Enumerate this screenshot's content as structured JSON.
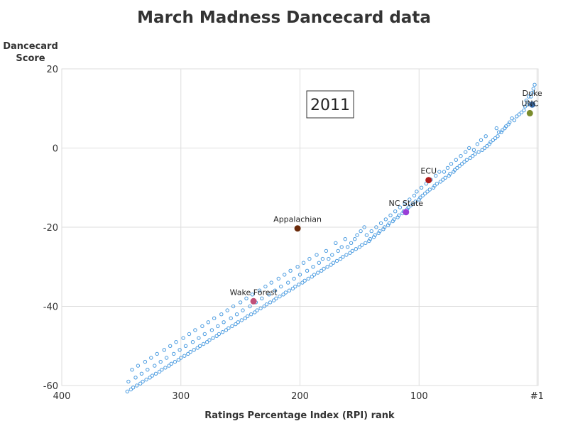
{
  "chart_data": {
    "type": "scatter",
    "title": "March Madness Dancecard data",
    "xlabel": "Ratings Percentage Index (RPI) rank",
    "ylabel": [
      "Dancecard",
      "Score"
    ],
    "xlim": [
      400,
      0
    ],
    "ylim": [
      -60,
      20
    ],
    "x_ticks": [
      400,
      300,
      200,
      100,
      1
    ],
    "x_tick_labels": [
      "400",
      "300",
      "200",
      "100",
      "#1"
    ],
    "y_ticks": [
      20,
      0,
      -20,
      -40,
      -60
    ],
    "y_tick_labels": [
      "20",
      "0",
      "-20",
      "-40",
      "-60"
    ],
    "grid": true,
    "annotation_box": "2011",
    "point_color": "#4a9be0",
    "highlighted": [
      {
        "name": "Duke",
        "x": 5,
        "y": 11,
        "color": "#3a6fb0"
      },
      {
        "name": "UNC",
        "x": 7,
        "y": 8.8,
        "color": "#7a8c2c"
      },
      {
        "name": "ECU",
        "x": 92,
        "y": -8.1,
        "color": "#b01c1c"
      },
      {
        "name": "NC State",
        "x": 111,
        "y": -16.2,
        "color": "#9a3ed6"
      },
      {
        "name": "Appalachian",
        "x": 202,
        "y": -20.3,
        "color": "#6a2a0a"
      },
      {
        "name": "Wake Forest",
        "x": 239,
        "y": -38.7,
        "color": "#c0507a"
      }
    ],
    "series": [
      {
        "name": "",
        "points": [
          [
            3,
            16
          ],
          [
            4,
            15
          ],
          [
            5,
            14
          ],
          [
            6,
            13
          ],
          [
            8,
            13
          ],
          [
            10,
            12
          ],
          [
            9,
            11
          ],
          [
            11,
            10.5
          ],
          [
            12,
            9.5
          ],
          [
            14,
            9
          ],
          [
            16,
            8.5
          ],
          [
            18,
            8
          ],
          [
            20,
            7
          ],
          [
            22,
            7.5
          ],
          [
            24,
            6.5
          ],
          [
            25,
            6
          ],
          [
            27,
            5.5
          ],
          [
            28,
            5
          ],
          [
            30,
            4.5
          ],
          [
            31,
            4
          ],
          [
            33,
            4
          ],
          [
            34,
            3
          ],
          [
            35,
            5
          ],
          [
            36,
            2.5
          ],
          [
            38,
            2
          ],
          [
            40,
            1.5
          ],
          [
            41,
            1
          ],
          [
            43,
            0.5
          ],
          [
            44,
            3
          ],
          [
            45,
            0
          ],
          [
            47,
            -0.5
          ],
          [
            48,
            2
          ],
          [
            50,
            -1
          ],
          [
            51,
            1
          ],
          [
            53,
            -1.5
          ],
          [
            54,
            -0.5
          ],
          [
            55,
            -2
          ],
          [
            57,
            -2.5
          ],
          [
            58,
            0
          ],
          [
            60,
            -3
          ],
          [
            61,
            -1
          ],
          [
            62,
            -3.5
          ],
          [
            64,
            -4
          ],
          [
            65,
            -2
          ],
          [
            66,
            -4.5
          ],
          [
            68,
            -5
          ],
          [
            69,
            -3
          ],
          [
            70,
            -5.5
          ],
          [
            71,
            -6
          ],
          [
            73,
            -4
          ],
          [
            74,
            -6.5
          ],
          [
            75,
            -7
          ],
          [
            76,
            -5
          ],
          [
            78,
            -7.5
          ],
          [
            79,
            -6
          ],
          [
            80,
            -8
          ],
          [
            82,
            -8.5
          ],
          [
            83,
            -6
          ],
          [
            85,
            -9
          ],
          [
            86,
            -7
          ],
          [
            87,
            -9.5
          ],
          [
            88,
            -10
          ],
          [
            90,
            -8
          ],
          [
            91,
            -10.5
          ],
          [
            93,
            -11
          ],
          [
            94,
            -9
          ],
          [
            95,
            -11.5
          ],
          [
            97,
            -12
          ],
          [
            98,
            -10
          ],
          [
            99,
            -12.5
          ],
          [
            100,
            -13
          ],
          [
            102,
            -11
          ],
          [
            103,
            -13.5
          ],
          [
            104,
            -12
          ],
          [
            105,
            -14
          ],
          [
            107,
            -14.5
          ],
          [
            108,
            -13
          ],
          [
            109,
            -15
          ],
          [
            110,
            -15.5
          ],
          [
            112,
            -14
          ],
          [
            113,
            -16
          ],
          [
            114,
            -16.5
          ],
          [
            116,
            -15
          ],
          [
            117,
            -17
          ],
          [
            118,
            -17.5
          ],
          [
            120,
            -16
          ],
          [
            121,
            -18
          ],
          [
            122,
            -18.5
          ],
          [
            124,
            -17
          ],
          [
            125,
            -19
          ],
          [
            126,
            -19.5
          ],
          [
            128,
            -18
          ],
          [
            129,
            -20
          ],
          [
            130,
            -20.5
          ],
          [
            132,
            -19
          ],
          [
            133,
            -21
          ],
          [
            134,
            -21.5
          ],
          [
            136,
            -20
          ],
          [
            137,
            -22
          ],
          [
            138,
            -22.5
          ],
          [
            140,
            -21
          ],
          [
            141,
            -23
          ],
          [
            142,
            -23.5
          ],
          [
            144,
            -22
          ],
          [
            145,
            -24
          ],
          [
            146,
            -20
          ],
          [
            148,
            -24.5
          ],
          [
            149,
            -21
          ],
          [
            150,
            -25
          ],
          [
            152,
            -22
          ],
          [
            153,
            -25.5
          ],
          [
            154,
            -23
          ],
          [
            156,
            -26
          ],
          [
            157,
            -24
          ],
          [
            158,
            -26.5
          ],
          [
            160,
            -25
          ],
          [
            161,
            -27
          ],
          [
            162,
            -23
          ],
          [
            164,
            -27.5
          ],
          [
            165,
            -25
          ],
          [
            166,
            -28
          ],
          [
            168,
            -26
          ],
          [
            169,
            -28.5
          ],
          [
            170,
            -24
          ],
          [
            172,
            -29
          ],
          [
            173,
            -27
          ],
          [
            174,
            -29.5
          ],
          [
            176,
            -28
          ],
          [
            177,
            -30
          ],
          [
            178,
            -26
          ],
          [
            180,
            -30.5
          ],
          [
            181,
            -28
          ],
          [
            182,
            -31
          ],
          [
            184,
            -29
          ],
          [
            185,
            -31.5
          ],
          [
            186,
            -27
          ],
          [
            188,
            -32
          ],
          [
            189,
            -30
          ],
          [
            190,
            -32.5
          ],
          [
            192,
            -28
          ],
          [
            193,
            -33
          ],
          [
            194,
            -31
          ],
          [
            196,
            -33.5
          ],
          [
            197,
            -29
          ],
          [
            198,
            -34
          ],
          [
            200,
            -32
          ],
          [
            201,
            -34.5
          ],
          [
            202,
            -30
          ],
          [
            204,
            -35
          ],
          [
            205,
            -33
          ],
          [
            206,
            -35.5
          ],
          [
            208,
            -31
          ],
          [
            209,
            -36
          ],
          [
            210,
            -34
          ],
          [
            212,
            -36.5
          ],
          [
            213,
            -32
          ],
          [
            214,
            -37
          ],
          [
            216,
            -35
          ],
          [
            217,
            -37.5
          ],
          [
            218,
            -33
          ],
          [
            220,
            -38
          ],
          [
            221,
            -36
          ],
          [
            222,
            -38.5
          ],
          [
            224,
            -34
          ],
          [
            225,
            -39
          ],
          [
            226,
            -37
          ],
          [
            228,
            -39.5
          ],
          [
            229,
            -35
          ],
          [
            230,
            -40
          ],
          [
            232,
            -38
          ],
          [
            233,
            -40.5
          ],
          [
            234,
            -36
          ],
          [
            236,
            -41
          ],
          [
            237,
            -39
          ],
          [
            238,
            -41.5
          ],
          [
            240,
            -37
          ],
          [
            241,
            -42
          ],
          [
            242,
            -40
          ],
          [
            244,
            -42.5
          ],
          [
            245,
            -38
          ],
          [
            246,
            -43
          ],
          [
            248,
            -41
          ],
          [
            249,
            -43.5
          ],
          [
            250,
            -39
          ],
          [
            252,
            -44
          ],
          [
            253,
            -42
          ],
          [
            254,
            -44.5
          ],
          [
            256,
            -40
          ],
          [
            257,
            -45
          ],
          [
            258,
            -43
          ],
          [
            260,
            -45.5
          ],
          [
            261,
            -41
          ],
          [
            262,
            -46
          ],
          [
            264,
            -44
          ],
          [
            265,
            -46.5
          ],
          [
            266,
            -42
          ],
          [
            268,
            -47
          ],
          [
            269,
            -45
          ],
          [
            270,
            -47.5
          ],
          [
            272,
            -43
          ],
          [
            273,
            -48
          ],
          [
            274,
            -46
          ],
          [
            276,
            -48.5
          ],
          [
            277,
            -44
          ],
          [
            278,
            -49
          ],
          [
            280,
            -47
          ],
          [
            281,
            -49.5
          ],
          [
            282,
            -45
          ],
          [
            284,
            -50
          ],
          [
            285,
            -48
          ],
          [
            286,
            -50.5
          ],
          [
            288,
            -46
          ],
          [
            289,
            -51
          ],
          [
            290,
            -49
          ],
          [
            292,
            -51.5
          ],
          [
            293,
            -47
          ],
          [
            294,
            -52
          ],
          [
            296,
            -50
          ],
          [
            297,
            -52.5
          ],
          [
            298,
            -48
          ],
          [
            300,
            -53
          ],
          [
            301,
            -51
          ],
          [
            302,
            -53.5
          ],
          [
            304,
            -49
          ],
          [
            305,
            -54
          ],
          [
            306,
            -52
          ],
          [
            308,
            -54.5
          ],
          [
            309,
            -50
          ],
          [
            310,
            -55
          ],
          [
            312,
            -53
          ],
          [
            313,
            -55.5
          ],
          [
            314,
            -51
          ],
          [
            316,
            -56
          ],
          [
            317,
            -54
          ],
          [
            318,
            -56.5
          ],
          [
            320,
            -52
          ],
          [
            321,
            -57
          ],
          [
            322,
            -55
          ],
          [
            324,
            -57.5
          ],
          [
            325,
            -53
          ],
          [
            326,
            -58
          ],
          [
            328,
            -56
          ],
          [
            329,
            -58.5
          ],
          [
            330,
            -54
          ],
          [
            332,
            -59
          ],
          [
            333,
            -57
          ],
          [
            334,
            -59.5
          ],
          [
            336,
            -55
          ],
          [
            337,
            -60
          ],
          [
            338,
            -58
          ],
          [
            340,
            -60.5
          ],
          [
            341,
            -56
          ],
          [
            342,
            -61
          ],
          [
            344,
            -59
          ],
          [
            345,
            -61.5
          ]
        ]
      }
    ]
  }
}
